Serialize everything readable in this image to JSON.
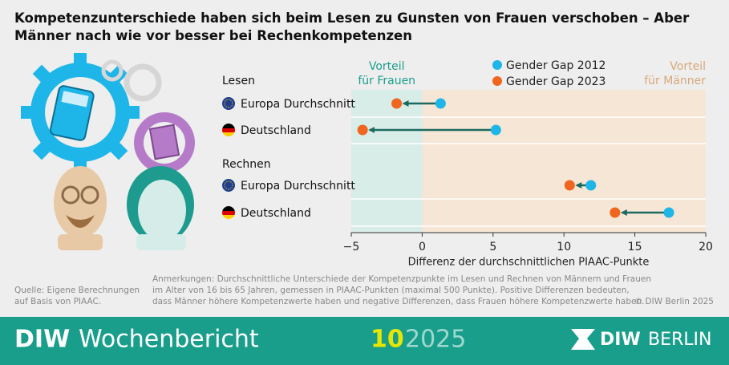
{
  "chart_data": {
    "type": "dumbbell",
    "title": "Kompetenzunterschiede haben sich beim Lesen zu Gunsten von Frauen verschoben – Aber Männer nach wie vor besser bei Rechenkompetenzen",
    "groups": [
      "Lesen",
      "Rechnen"
    ],
    "categories": [
      [
        "Europa Durchschnitt",
        "Deutschland"
      ],
      [
        "Europa Durchschnitt",
        "Deutschland"
      ]
    ],
    "series": [
      {
        "name": "Gender Gap 2012",
        "color": "#1eb6e8",
        "values": [
          [
            1.3,
            5.2
          ],
          [
            11.9,
            17.4
          ]
        ]
      },
      {
        "name": "Gender Gap 2023",
        "color": "#f0661e",
        "values": [
          [
            -1.8,
            -4.2
          ],
          [
            10.4,
            13.6
          ]
        ]
      }
    ],
    "xlim": [
      -5,
      20
    ],
    "xticks": [
      {
        "value": -5,
        "label": "−5"
      },
      0,
      5,
      10,
      15,
      20
    ],
    "x_label": "Differenz der durchschnittlichen PIAAC-Punkte",
    "annotations": {
      "left": [
        "Vorteil",
        "für Frauen"
      ],
      "right": [
        "Vorteil",
        "für Männer"
      ]
    },
    "source": [
      "Quelle: Eigene Berechnungen",
      "auf Basis von PIAAC."
    ],
    "notes": [
      "Anmerkungen: Durchschnittliche Unterschiede der Kompetenzpunkte im Lesen und Rechnen von Männern und Frauen",
      "im Alter von 16 bis 65 Jahren, gemessen in PIAAC-Punkten (maximal 500 Punkte). Positive Differenzen bedeuten,",
      "dass Männer höhere Kompetenzwerte haben und negative Differenzen, dass Frauen höhere Kompetenzwerte haben."
    ],
    "copyright": "© DIW Berlin 2025",
    "banner": {
      "name": "DIW",
      "publication": "Wochenbericht",
      "issue": "10",
      "year": "2025",
      "logo": [
        "DIW",
        "BERLIN"
      ]
    }
  }
}
